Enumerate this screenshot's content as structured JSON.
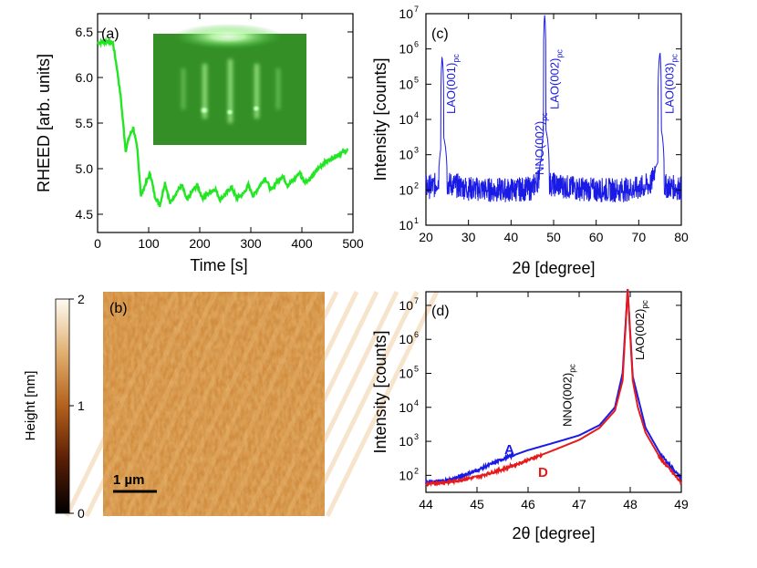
{
  "colors": {
    "rheed_line": "#22e622",
    "xrd_blue": "#1a1ae6",
    "curve_red": "#e61a1a",
    "afm_base": "#d08a3a"
  },
  "panel_a": {
    "tag": "(a)",
    "ylabel": "RHEED [arb. units]",
    "xlabel": "Time [s]",
    "xticks": [
      "0",
      "100",
      "200",
      "300",
      "400",
      "500"
    ],
    "yticks": [
      "4.5",
      "5.0",
      "5.5",
      "6.0",
      "6.5"
    ],
    "xlim": [
      0,
      500
    ],
    "ylim": [
      4.3,
      6.7
    ],
    "inset": "rheed-diffraction-pattern"
  },
  "panel_b": {
    "tag": "(b)",
    "colorbar_label": "Height [nm]",
    "colorbar_ticks": [
      "0",
      "1",
      "2"
    ],
    "scale_label": "1 µm"
  },
  "panel_c": {
    "tag": "(c)",
    "ylabel": "Intensity [counts]",
    "xlabel": "2θ [degree]",
    "xticks": [
      "20",
      "30",
      "40",
      "50",
      "60",
      "70",
      "80"
    ],
    "peak_labels": [
      {
        "main": "LAO(001)",
        "sub": "pc"
      },
      {
        "main": "NNO(002)",
        "sub": "pc"
      },
      {
        "main": "LAO(002)",
        "sub": "pc"
      },
      {
        "main": "LAO(003)",
        "sub": "pc"
      }
    ]
  },
  "panel_d": {
    "tag": "(d)",
    "ylabel": "Intensity [counts]",
    "xlabel": "2θ [degree]",
    "xticks": [
      "44",
      "45",
      "46",
      "47",
      "48",
      "49"
    ],
    "peak_labels": [
      {
        "main": "NNO(002)",
        "sub": "pc"
      },
      {
        "main": "LAO(002)",
        "sub": "pc"
      }
    ],
    "curve_labels": [
      "A",
      "D"
    ]
  },
  "chart_data": [
    {
      "type": "line",
      "panel": "a",
      "xlabel": "Time [s]",
      "ylabel": "RHEED [arb. units]",
      "xlim": [
        0,
        500
      ],
      "ylim": [
        4.3,
        6.7
      ],
      "series": [
        {
          "x": [
            0,
            10,
            20,
            30,
            38,
            45,
            55,
            62,
            70,
            78,
            85,
            95,
            103,
            112,
            122,
            132,
            142,
            152,
            165,
            175,
            185,
            195,
            205,
            215,
            230,
            240,
            250,
            262,
            272,
            285,
            295,
            305,
            318,
            328,
            340,
            350,
            362,
            372,
            385,
            395,
            405,
            415,
            425,
            440,
            460,
            480,
            490
          ],
          "y": [
            6.38,
            6.39,
            6.4,
            6.38,
            6.1,
            5.8,
            5.2,
            5.35,
            5.45,
            5.2,
            4.7,
            4.85,
            4.95,
            4.7,
            4.6,
            4.85,
            4.62,
            4.72,
            4.82,
            4.65,
            4.75,
            4.82,
            4.68,
            4.72,
            4.78,
            4.66,
            4.72,
            4.8,
            4.68,
            4.72,
            4.82,
            4.7,
            4.82,
            4.9,
            4.76,
            4.85,
            4.92,
            4.82,
            4.88,
            4.96,
            4.86,
            4.88,
            4.95,
            5.05,
            5.12,
            5.18,
            5.2
          ]
        }
      ]
    },
    {
      "type": "line",
      "panel": "c",
      "xlabel": "2θ [degree]",
      "ylabel": "Intensity [counts]",
      "xlim": [
        20,
        80
      ],
      "ylog": true,
      "ylim_exp": [
        1,
        7
      ],
      "yticks": [
        "10",
        "10",
        "10",
        "10",
        "10",
        "10",
        "10"
      ],
      "ytick_exponents": [
        "1",
        "2",
        "3",
        "4",
        "5",
        "6",
        "7"
      ],
      "series": [
        {
          "x": [
            20,
            22,
            23,
            23.5,
            23.8,
            24.2,
            25,
            30,
            35,
            40,
            45,
            46.5,
            47.2,
            47.6,
            47.9,
            48.2,
            49,
            55,
            60,
            65,
            70,
            73,
            74.5,
            75,
            75.3,
            76,
            80
          ],
          "y": [
            120,
            130,
            200,
            1500,
            600000,
            3000,
            150,
            110,
            100,
            100,
            110,
            200,
            900,
            4000,
            9000000,
            5000,
            150,
            110,
            100,
            100,
            110,
            150,
            600,
            800000,
            5000,
            130,
            110
          ]
        }
      ]
    },
    {
      "type": "line",
      "panel": "d",
      "xlabel": "2θ [degree]",
      "ylabel": "Intensity [counts]",
      "xlim": [
        44,
        49
      ],
      "ylog": true,
      "ylim_exp": [
        1.5,
        7.4
      ],
      "yticks": [
        "10",
        "10",
        "10",
        "10",
        "10",
        "10"
      ],
      "ytick_exponents": [
        "2",
        "3",
        "4",
        "5",
        "6",
        "7"
      ],
      "series": [
        {
          "name": "A",
          "x": [
            44,
            44.5,
            45,
            45.5,
            46,
            46.5,
            47,
            47.4,
            47.7,
            47.85,
            47.95,
            48.05,
            48.15,
            48.3,
            48.6,
            49
          ],
          "y": [
            60,
            75,
            140,
            300,
            550,
            900,
            1500,
            3000,
            10000,
            100000,
            30000000,
            80000,
            20000,
            2500,
            400,
            80
          ]
        },
        {
          "name": "D",
          "x": [
            44,
            44.5,
            45,
            45.5,
            46,
            46.5,
            47,
            47.4,
            47.7,
            47.85,
            47.95,
            48.05,
            48.15,
            48.3,
            48.6,
            49
          ],
          "y": [
            55,
            65,
            90,
            150,
            280,
            550,
            1100,
            2500,
            8000,
            60000,
            30000000,
            60000,
            10000,
            1800,
            300,
            60
          ]
        }
      ]
    }
  ]
}
